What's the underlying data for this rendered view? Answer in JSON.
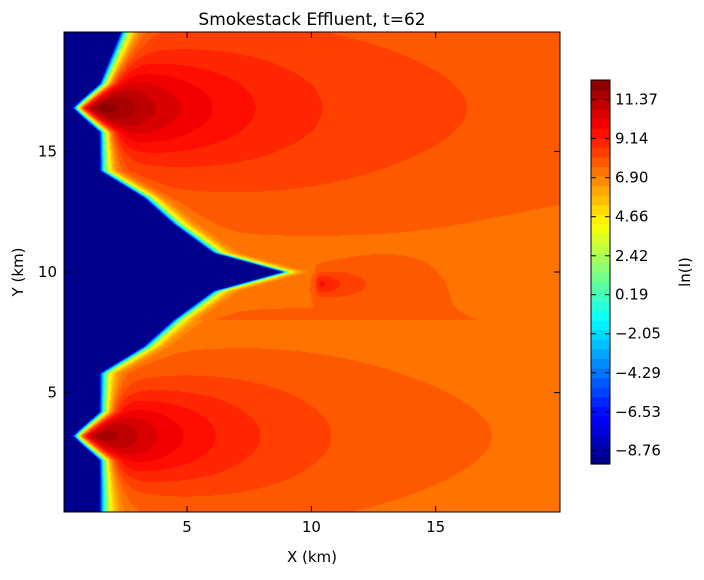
{
  "chart_data": {
    "type": "heatmap",
    "subtype": "filled-contour",
    "title": "Smokestack Effluent, t=62",
    "xlabel": "X (km)",
    "ylabel": "Y (km)",
    "xlim": [
      0.05,
      20
    ],
    "ylim": [
      0.05,
      19.95
    ],
    "x_ticks": [
      5,
      10,
      15
    ],
    "y_ticks": [
      5,
      10,
      15
    ],
    "colormap": "jet",
    "colorbar": {
      "label": "ln(I)",
      "min": -9.52,
      "max": 12.5,
      "levels": 40,
      "ticks": [
        -8.76,
        -6.53,
        -4.29,
        -2.05,
        0.19,
        2.42,
        4.66,
        6.9,
        9.14,
        11.37
      ],
      "tick_labels": [
        "−8.76",
        "−6.53",
        "−4.29",
        "−2.05",
        "0.19",
        "2.42",
        "4.66",
        "6.90",
        "9.14",
        "11.37"
      ]
    },
    "sources": [
      {
        "x": 0.8,
        "y": 16.8,
        "peak": 12.3
      },
      {
        "x": 0.8,
        "y": 3.2,
        "peak": 12.3
      },
      {
        "x": 10.4,
        "y": 9.5,
        "peak": 9.2
      }
    ],
    "background_value": 7.3,
    "front_profile": [
      {
        "y": 0.05,
        "x": 1.45
      },
      {
        "y": 2.2,
        "x": 1.45
      },
      {
        "y": 3.2,
        "x": 0.35
      },
      {
        "y": 4.2,
        "x": 1.45
      },
      {
        "y": 5.8,
        "x": 1.45
      },
      {
        "y": 6.9,
        "x": 3.2
      },
      {
        "y": 8.0,
        "x": 4.4
      },
      {
        "y": 9.2,
        "x": 6.0
      },
      {
        "y": 10.0,
        "x": 8.8
      },
      {
        "y": 10.8,
        "x": 6.0
      },
      {
        "y": 12.0,
        "x": 4.4
      },
      {
        "y": 13.1,
        "x": 3.2
      },
      {
        "y": 14.2,
        "x": 1.45
      },
      {
        "y": 15.8,
        "x": 1.45
      },
      {
        "y": 16.8,
        "x": 0.35
      },
      {
        "y": 17.8,
        "x": 1.45
      },
      {
        "y": 19.95,
        "x": 2.3
      }
    ]
  }
}
